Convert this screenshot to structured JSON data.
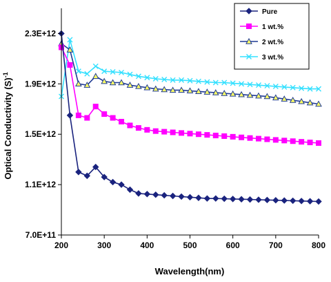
{
  "chart_data": {
    "type": "line",
    "title": "",
    "xlabel": "Wavelength(nm)",
    "ylabel": "Optical Conductivity (S)",
    "ylabel_exponent": "-1",
    "xlim": [
      200,
      800
    ],
    "ylim": [
      700000000000.0,
      2500000000000.0
    ],
    "x_ticks": [
      200,
      300,
      400,
      500,
      600,
      700,
      800
    ],
    "x_tick_labels": [
      "200",
      "300",
      "400",
      "500",
      "600",
      "700",
      "800"
    ],
    "y_ticks": [
      700000000000.0,
      1100000000000.0,
      1500000000000.0,
      1900000000000.0,
      2300000000000.0
    ],
    "y_tick_labels": [
      "7.0E+11",
      "1.1E+12",
      "1.5E+12",
      "1.9E+12",
      "2.3E+12"
    ],
    "grid": false,
    "legend_position": "top-right",
    "x": [
      200,
      220,
      240,
      260,
      280,
      300,
      320,
      340,
      360,
      380,
      400,
      420,
      440,
      460,
      480,
      500,
      520,
      540,
      560,
      580,
      600,
      620,
      640,
      660,
      680,
      700,
      720,
      740,
      760,
      780,
      800
    ],
    "series": [
      {
        "name": "Pure",
        "color": "#1a237e",
        "marker": "diamond",
        "values": [
          2300000000000.0,
          1650000000000.0,
          1200000000000.0,
          1170000000000.0,
          1240000000000.0,
          1160000000000.0,
          1120000000000.0,
          1100000000000.0,
          1060000000000.0,
          1030000000000.0,
          1025000000000.0,
          1020000000000.0,
          1015000000000.0,
          1010000000000.0,
          1005000000000.0,
          1000000000000.0,
          995000000000.0,
          990000000000.0,
          990000000000.0,
          988000000000.0,
          986000000000.0,
          984000000000.0,
          982000000000.0,
          980000000000.0,
          978000000000.0,
          976000000000.0,
          974000000000.0,
          972000000000.0,
          970000000000.0,
          968000000000.0,
          966000000000.0
        ]
      },
      {
        "name": "1 wt.%",
        "color": "#ff00ff",
        "marker": "square",
        "values": [
          2190000000000.0,
          2050000000000.0,
          1650000000000.0,
          1630000000000.0,
          1720000000000.0,
          1660000000000.0,
          1630000000000.0,
          1600000000000.0,
          1570000000000.0,
          1550000000000.0,
          1535000000000.0,
          1525000000000.0,
          1520000000000.0,
          1515000000000.0,
          1510000000000.0,
          1505000000000.0,
          1500000000000.0,
          1495000000000.0,
          1490000000000.0,
          1485000000000.0,
          1480000000000.0,
          1475000000000.0,
          1470000000000.0,
          1465000000000.0,
          1460000000000.0,
          1455000000000.0,
          1450000000000.0,
          1445000000000.0,
          1440000000000.0,
          1435000000000.0,
          1430000000000.0
        ]
      },
      {
        "name": "2 wt.%",
        "color": "#1f3a93",
        "marker": "triangle",
        "marker_fill": "#ffff66",
        "values": [
          2220000000000.0,
          2170000000000.0,
          1900000000000.0,
          1890000000000.0,
          1960000000000.0,
          1920000000000.0,
          1910000000000.0,
          1910000000000.0,
          1890000000000.0,
          1880000000000.0,
          1870000000000.0,
          1860000000000.0,
          1855000000000.0,
          1850000000000.0,
          1850000000000.0,
          1845000000000.0,
          1840000000000.0,
          1835000000000.0,
          1830000000000.0,
          1825000000000.0,
          1820000000000.0,
          1815000000000.0,
          1810000000000.0,
          1805000000000.0,
          1800000000000.0,
          1790000000000.0,
          1780000000000.0,
          1770000000000.0,
          1760000000000.0,
          1750000000000.0,
          1740000000000.0
        ]
      },
      {
        "name": "3 wt.%",
        "color": "#33e0ff",
        "marker": "x",
        "values": [
          1800000000000.0,
          2250000000000.0,
          2000000000000.0,
          1980000000000.0,
          2040000000000.0,
          2000000000000.0,
          1995000000000.0,
          1990000000000.0,
          1975000000000.0,
          1960000000000.0,
          1950000000000.0,
          1940000000000.0,
          1935000000000.0,
          1930000000000.0,
          1930000000000.0,
          1925000000000.0,
          1920000000000.0,
          1915000000000.0,
          1910000000000.0,
          1910000000000.0,
          1905000000000.0,
          1900000000000.0,
          1895000000000.0,
          1890000000000.0,
          1885000000000.0,
          1880000000000.0,
          1875000000000.0,
          1870000000000.0,
          1865000000000.0,
          1860000000000.0,
          1860000000000.0
        ]
      }
    ]
  }
}
